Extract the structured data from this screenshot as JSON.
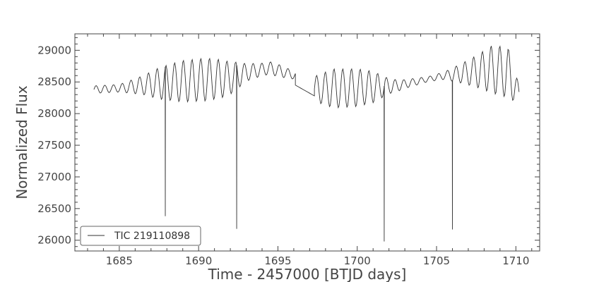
{
  "chart_data": {
    "type": "line",
    "title": "",
    "xlabel": "Time - 2457000 [BTJD days]",
    "ylabel": "Normalized Flux",
    "xlim": [
      1682.2,
      1711.5
    ],
    "ylim": [
      25830,
      29260
    ],
    "x_ticks": [
      1685,
      1690,
      1695,
      1700,
      1705,
      1710
    ],
    "y_ticks": [
      26000,
      26500,
      27000,
      27500,
      28000,
      28500,
      29000
    ],
    "grid": false,
    "legend_position": "bottom-left",
    "colors": {
      "line": "#333333",
      "axes": "#444444"
    },
    "series": [
      {
        "name": "TIC 219110898",
        "segments": [
          {
            "x_start": 1683.4,
            "x_end": 1696.1,
            "step": 0.05,
            "baseline": 28530,
            "oscillation": {
              "period": 0.55,
              "phase": 1683.4,
              "amplitude_knots": [
                [
                  1683.4,
                  60
                ],
                [
                  1685.0,
                  60
                ],
                [
                  1686.5,
                  150
                ],
                [
                  1687.5,
                  250
                ],
                [
                  1689.0,
                  330
                ],
                [
                  1690.5,
                  340
                ],
                [
                  1691.5,
                  300
                ],
                [
                  1692.3,
                  230
                ],
                [
                  1693.0,
                  140
                ],
                [
                  1694.0,
                  100
                ],
                [
                  1695.0,
                  100
                ],
                [
                  1696.1,
                  60
                ]
              ],
              "baseline_knots": [
                [
                  1683.4,
                  28380
                ],
                [
                  1685.0,
                  28400
                ],
                [
                  1686.5,
                  28450
                ],
                [
                  1688.0,
                  28490
                ],
                [
                  1690.0,
                  28530
                ],
                [
                  1692.0,
                  28560
                ],
                [
                  1693.0,
                  28650
                ],
                [
                  1694.5,
                  28720
                ],
                [
                  1696.1,
                  28600
                ]
              ]
            }
          },
          {
            "x_start": 1696.1,
            "x_end": 1697.3,
            "step": 0.05,
            "linear": [
              [
                1696.1,
                28450
              ],
              [
                1697.3,
                28280
              ]
            ]
          },
          {
            "x_start": 1697.3,
            "x_end": 1710.2,
            "step": 0.05,
            "oscillation": {
              "period": 0.55,
              "phase": 1697.3,
              "amplitude_knots": [
                [
                  1697.3,
                  200
                ],
                [
                  1698.5,
                  310
                ],
                [
                  1700.0,
                  300
                ],
                [
                  1701.0,
                  250
                ],
                [
                  1702.0,
                  120
                ],
                [
                  1703.0,
                  70
                ],
                [
                  1704.5,
                  40
                ],
                [
                  1705.5,
                  60
                ],
                [
                  1706.5,
                  150
                ],
                [
                  1707.5,
                  250
                ],
                [
                  1708.5,
                  380
                ],
                [
                  1709.5,
                  400
                ],
                [
                  1710.2,
                  150
                ]
              ],
              "baseline_knots": [
                [
                  1697.3,
                  28390
                ],
                [
                  1699.0,
                  28400
                ],
                [
                  1701.0,
                  28420
                ],
                [
                  1702.5,
                  28440
                ],
                [
                  1704.0,
                  28520
                ],
                [
                  1705.5,
                  28600
                ],
                [
                  1707.0,
                  28650
                ],
                [
                  1708.5,
                  28700
                ],
                [
                  1709.5,
                  28650
                ],
                [
                  1710.2,
                  28300
                ]
              ]
            }
          }
        ],
        "dips": [
          {
            "x": 1687.9,
            "y": 26380
          },
          {
            "x": 1692.4,
            "y": 26180
          },
          {
            "x": 1701.7,
            "y": 25980
          },
          {
            "x": 1706.0,
            "y": 26170
          }
        ]
      }
    ]
  }
}
